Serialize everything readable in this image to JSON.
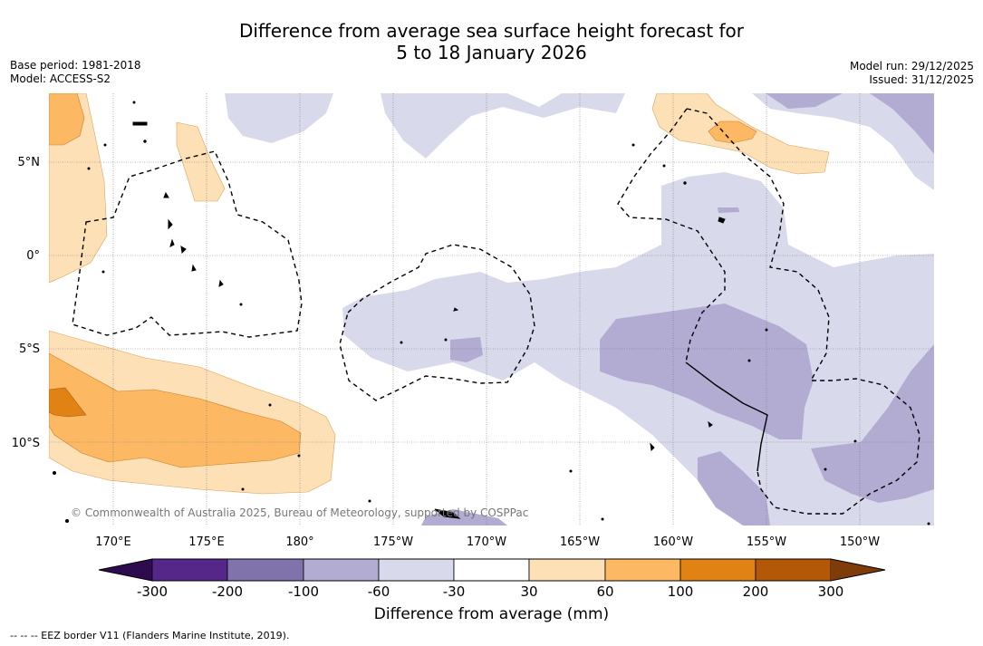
{
  "title_line1": "Difference from average sea surface height forecast for",
  "title_line2": "5 to 18 January 2026",
  "base_period": "Base period: 1981-2018",
  "model": "Model: ACCESS-S2",
  "model_run": "Model run: 29/12/2025",
  "issued": "Issued: 31/12/2025",
  "copyright": "© Commonwealth of Australia 2025, Bureau of Meteorology, supported by COSPPac",
  "lat_labels": [
    "5°N",
    "0°",
    "5°S",
    "10°S"
  ],
  "lon_labels": [
    "170°E",
    "175°E",
    "180°",
    "175°W",
    "170°W",
    "165°W",
    "160°W",
    "155°W",
    "150°W"
  ],
  "colorbar": {
    "title": "Difference from average (mm)",
    "ticks": [
      "-300",
      "-200",
      "-100",
      "-60",
      "-30",
      "30",
      "60",
      "100",
      "200",
      "300"
    ],
    "colors": {
      "below_min": "#2d0b4e",
      "c_neg300_neg200": "#542788",
      "c_neg200_neg100": "#8073ac",
      "c_neg100_neg60": "#b2abd2",
      "c_neg60_neg30": "#d8daeb",
      "c_neg30_30": "#ffffff",
      "c_30_60": "#fee0b6",
      "c_60_100": "#fdb863",
      "c_100_200": "#e08214",
      "c_200_300": "#b35806",
      "above_max": "#7f3b08"
    }
  },
  "footnote": "-- -- -- EEZ border V11 (Flanders Marine Institute, 2019)."
}
